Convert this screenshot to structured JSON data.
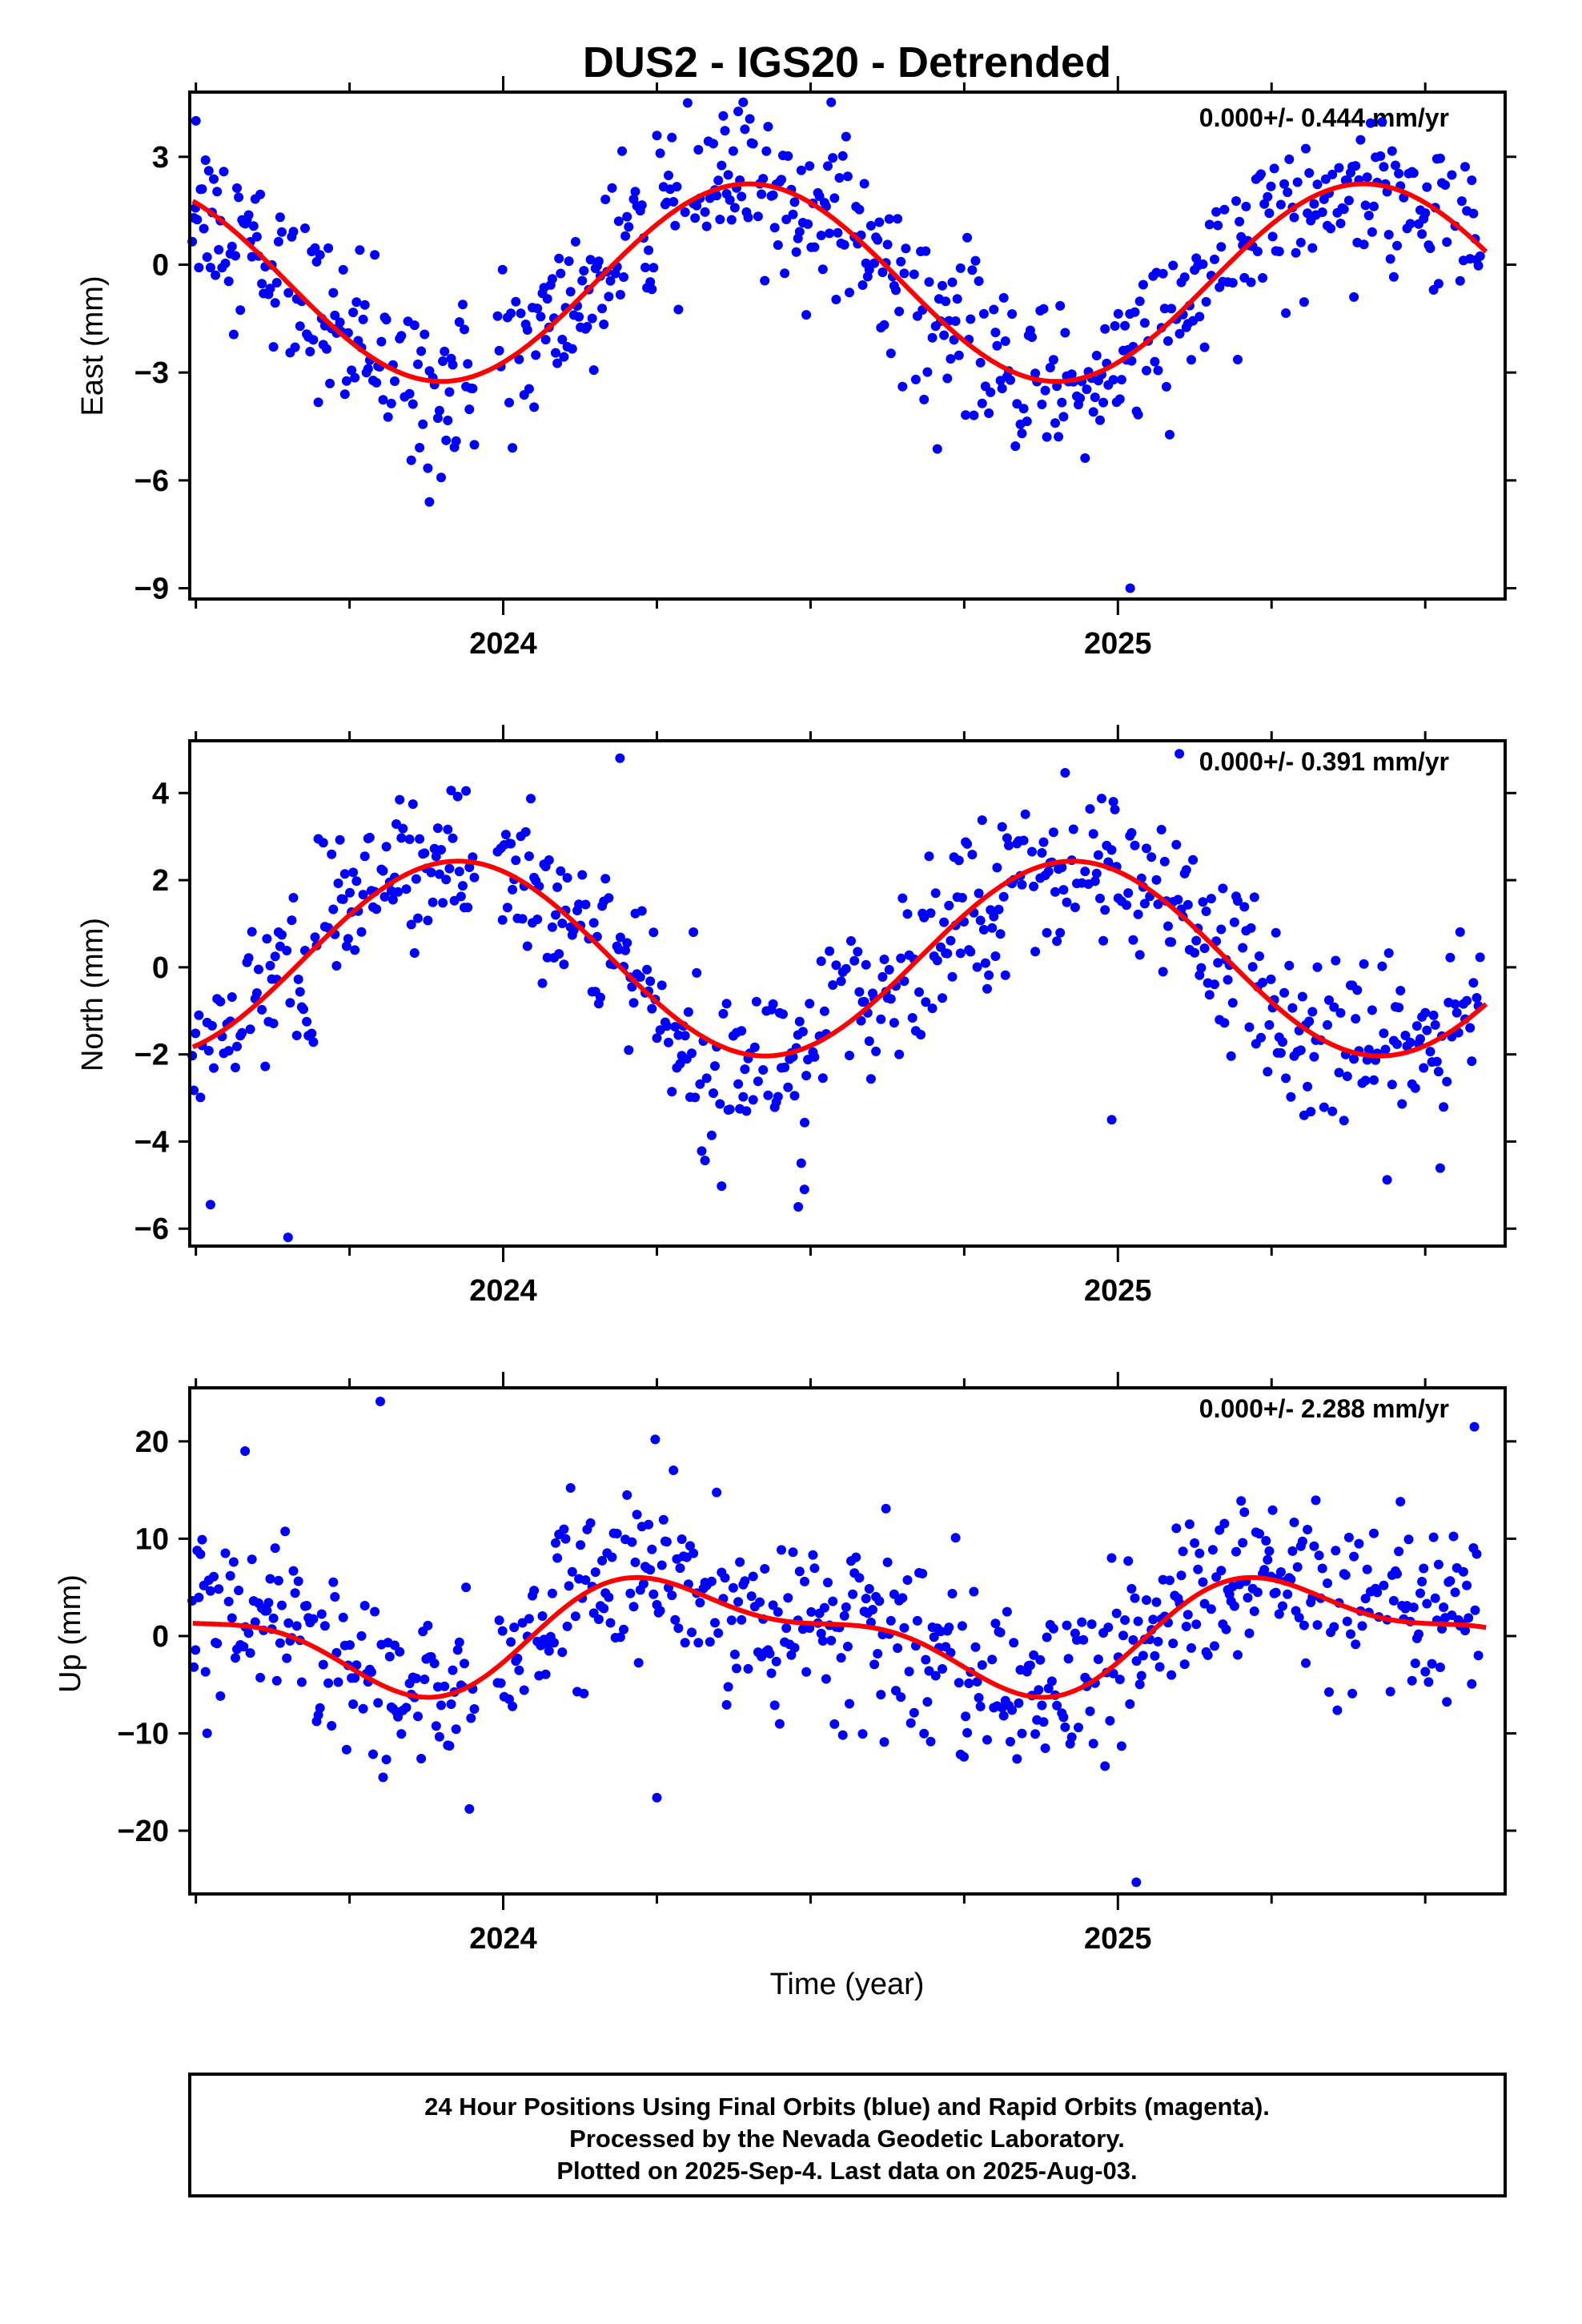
{
  "chart_data": {
    "type": "scatter",
    "title": "DUS2 - IGS20 - Detrended",
    "xlabel": "Time (year)",
    "x_range": [
      2023.49,
      2025.63
    ],
    "x_tick_labels": [
      "2024",
      "2025"
    ],
    "colors": {
      "points": "#0000ff",
      "fit": "#ff0000"
    },
    "panels": [
      {
        "component": "East",
        "ylabel": "East (mm)",
        "rate": "0.000+/- 0.444 mm/yr",
        "ylim": [
          -9.3,
          4.8
        ],
        "yticks": [
          3,
          0,
          -3,
          -6,
          -9
        ],
        "ytick_labels": [
          "3",
          "0",
          "−3",
          "−6",
          "−9"
        ],
        "fit": {
          "offset": -0.5,
          "sin_amp": 1.62,
          "cos_amp": -2.22
        },
        "scatter_sd": 1.1,
        "outliers": [
          [
            2023.88,
            -6.6
          ],
          [
            2025.02,
            -9.0
          ],
          [
            2024.3,
            4.5
          ],
          [
            2023.5,
            4.0
          ]
        ]
      },
      {
        "component": "North",
        "ylabel": "North (mm)",
        "rate": "0.000+/- 0.391 mm/yr",
        "ylim": [
          -6.4,
          5.2
        ],
        "yticks": [
          4,
          2,
          0,
          -2,
          -4,
          -6
        ],
        "ytick_labels": [
          "4",
          "2",
          "0",
          "−2",
          "−4",
          "−6"
        ],
        "fit": {
          "offset": 0.2,
          "sin_amp": -1.0,
          "cos_amp": 2.0
        },
        "scatter_sd": 0.95,
        "outliers": [
          [
            2023.65,
            -6.2
          ],
          [
            2024.48,
            -5.5
          ],
          [
            2024.49,
            -5.1
          ],
          [
            2025.1,
            4.9
          ],
          [
            2024.19,
            4.8
          ],
          [
            2024.99,
            -3.5
          ]
        ]
      },
      {
        "component": "Up",
        "ylabel": "Up (mm)",
        "rate": "0.000+/- 2.288 mm/yr",
        "ylim": [
          -26.5,
          25.5
        ],
        "yticks": [
          20,
          10,
          0,
          -10,
          -20
        ],
        "ytick_labels": [
          "20",
          "10",
          "0",
          "−10",
          "−20"
        ],
        "fit": {
          "offset": 0.3,
          "sin_amp": 4.5,
          "cos_amp": -2.0,
          "sin2_amp": 2.0,
          "cos2_amp": -1.0
        },
        "scatter_sd": 4.3,
        "outliers": [
          [
            2023.8,
            24.1
          ],
          [
            2025.03,
            -25.3
          ],
          [
            2023.58,
            19.0
          ],
          [
            2025.58,
            21.5
          ],
          [
            2024.25,
            -16.6
          ]
        ]
      }
    ]
  },
  "footer": {
    "line1": "24 Hour Positions Using Final Orbits (blue) and Rapid Orbits (magenta).",
    "line2": "Processed by the Nevada Geodetic Laboratory.",
    "line3": "Plotted on 2025-Sep-4. Last data on 2025-Aug-03."
  }
}
